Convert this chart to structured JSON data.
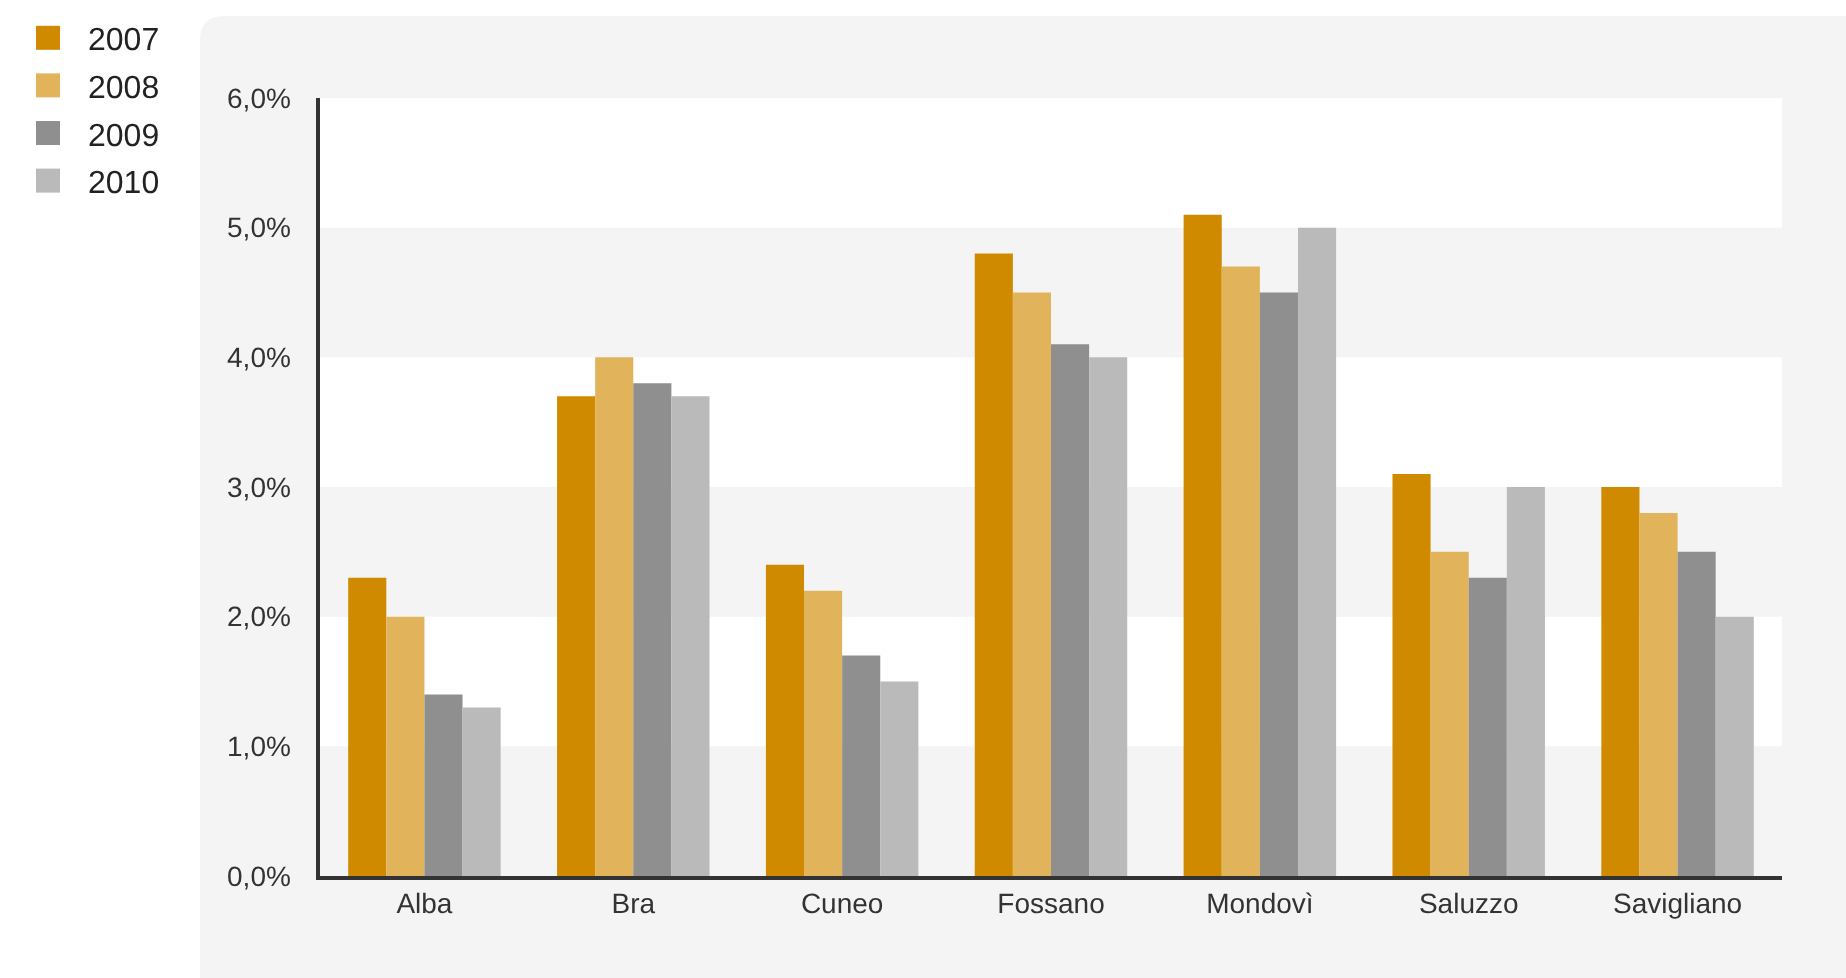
{
  "chart_data": {
    "type": "bar",
    "categories": [
      "Alba",
      "Bra",
      "Cuneo",
      "Fossano",
      "Mondovì",
      "Saluzzo",
      "Savigliano"
    ],
    "series": [
      {
        "name": "2007",
        "color": "#d08a00",
        "values": [
          2.3,
          3.7,
          2.4,
          4.8,
          5.1,
          3.1,
          3.0
        ]
      },
      {
        "name": "2008",
        "color": "#e1b35a",
        "values": [
          2.0,
          4.0,
          2.2,
          4.5,
          4.7,
          2.5,
          2.8
        ]
      },
      {
        "name": "2009",
        "color": "#8f8f8f",
        "values": [
          1.4,
          3.8,
          1.7,
          4.1,
          4.5,
          2.3,
          2.5
        ]
      },
      {
        "name": "2010",
        "color": "#bababa",
        "values": [
          1.3,
          3.7,
          1.5,
          4.0,
          5.0,
          3.0,
          2.0
        ]
      }
    ],
    "ylim": [
      0,
      6
    ],
    "yticks": [
      {
        "value": 0,
        "label": "0,0%"
      },
      {
        "value": 1,
        "label": "1,0%"
      },
      {
        "value": 2,
        "label": "2,0%"
      },
      {
        "value": 3,
        "label": "3,0%"
      },
      {
        "value": 4,
        "label": "4,0%"
      },
      {
        "value": 5,
        "label": "5,0%"
      },
      {
        "value": 6,
        "label": "6,0%"
      }
    ],
    "bands": [
      {
        "axis": "y",
        "from": 1,
        "to": 2,
        "color": "#ffffff"
      },
      {
        "axis": "y",
        "from": 3,
        "to": 4,
        "color": "#ffffff"
      },
      {
        "axis": "y",
        "from": 5,
        "to": 6,
        "color": "#ffffff"
      }
    ],
    "legend": "top left"
  }
}
